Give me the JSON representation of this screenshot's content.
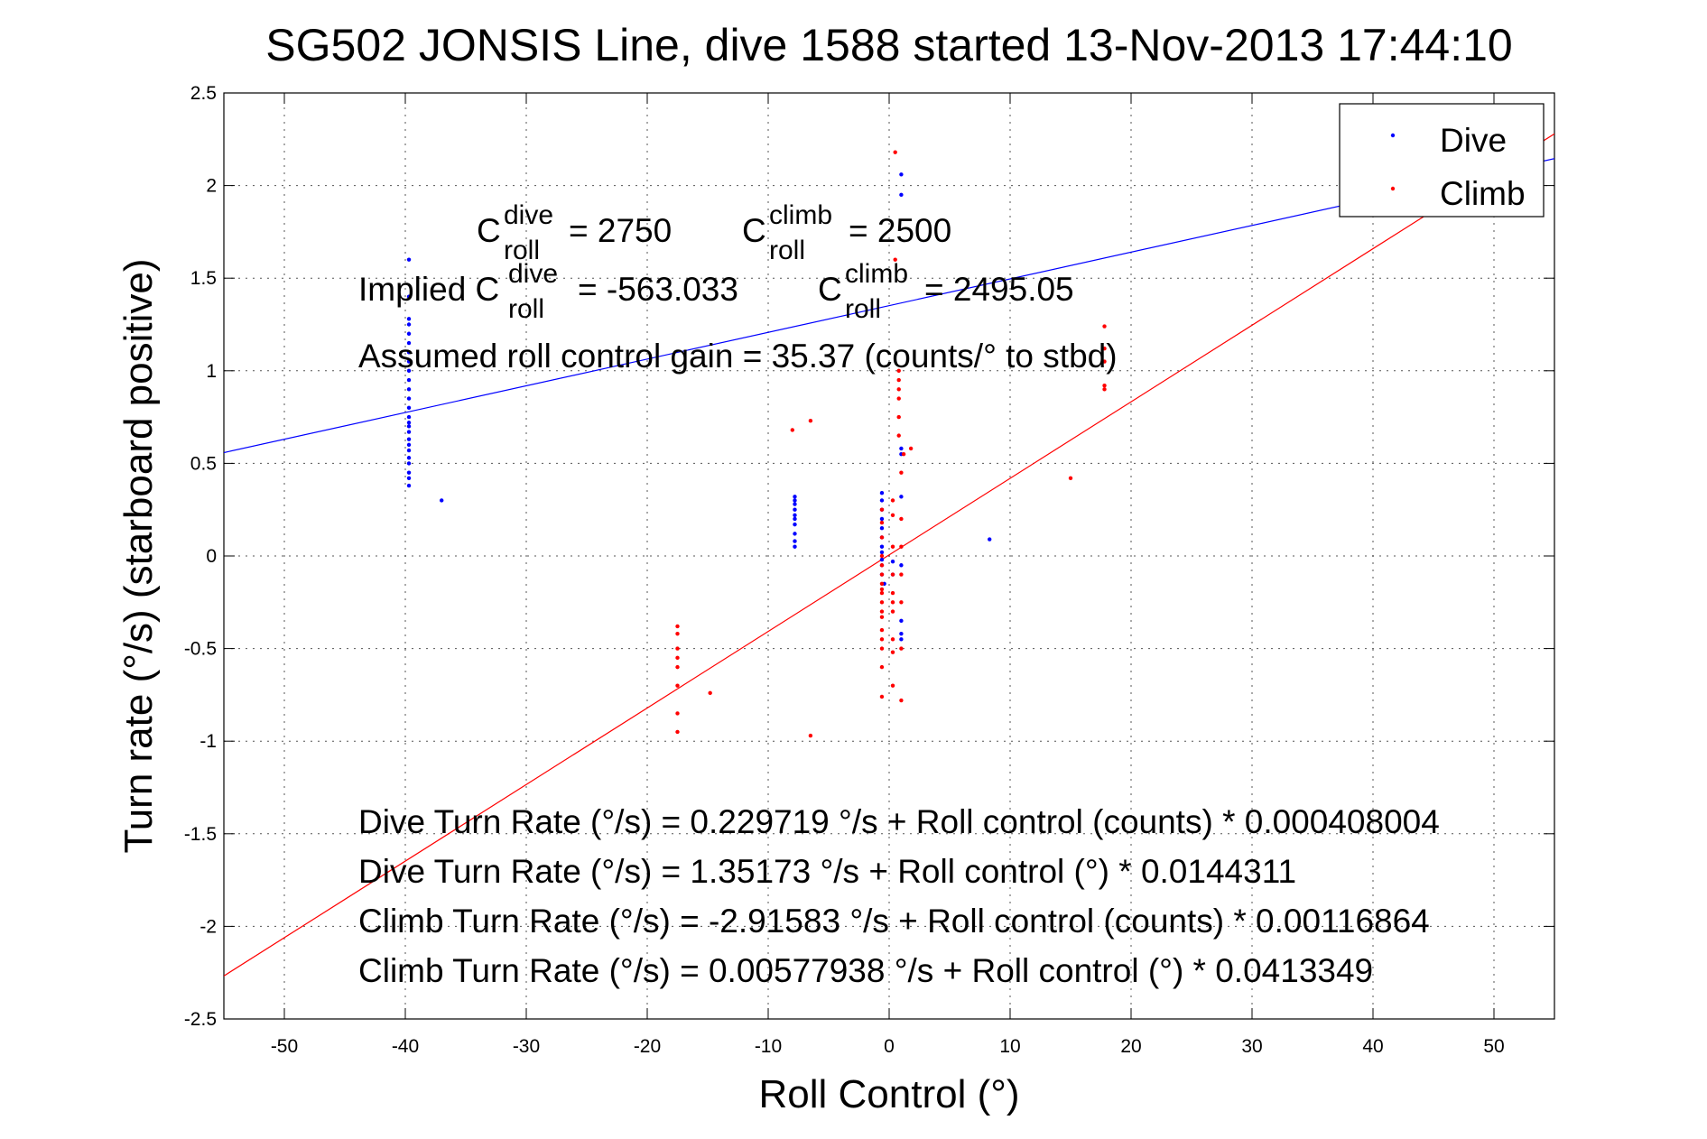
{
  "chart_data": {
    "type": "scatter",
    "title": "SG502 JONSIS Line, dive 1588 started 13-Nov-2013 17:44:10",
    "xlabel": "Roll Control (°)",
    "ylabel": "Turn rate (°/s) (starboard positive)",
    "xlim": [
      -55,
      55
    ],
    "ylim": [
      -2.5,
      2.5
    ],
    "x_ticks": [
      -50,
      -40,
      -30,
      -20,
      -10,
      0,
      10,
      20,
      30,
      40,
      50
    ],
    "x_tick_labels": [
      "-50",
      "-40",
      "-30",
      "-20",
      "-10",
      "0",
      "10",
      "20",
      "30",
      "40",
      "50"
    ],
    "y_ticks": [
      2.5,
      2,
      1.5,
      1,
      0.5,
      0,
      -0.5,
      -1,
      -1.5,
      -2,
      -2.5
    ],
    "y_tick_labels": [
      "2.5",
      "2",
      "1.5",
      "1",
      "0.5",
      "0",
      "-0.5",
      "-1",
      "-1.5",
      "-2",
      "-2.5"
    ],
    "grid": true,
    "legend": "top-right",
    "series": [
      {
        "name": "Dive",
        "color": "#0000ff",
        "fit": {
          "intercept": 1.35173,
          "slope": 0.0144311
        },
        "points": [
          [
            -39.7,
            1.6
          ],
          [
            -39.7,
            1.4
          ],
          [
            -39.7,
            1.28
          ],
          [
            -39.7,
            1.25
          ],
          [
            -39.7,
            1.2
          ],
          [
            -39.7,
            1.15
          ],
          [
            -39.7,
            1.1
          ],
          [
            -39.7,
            1.05
          ],
          [
            -39.7,
            1.0
          ],
          [
            -39.7,
            0.95
          ],
          [
            -39.7,
            0.9
          ],
          [
            -39.7,
            0.85
          ],
          [
            -39.7,
            0.8
          ],
          [
            -39.7,
            0.75
          ],
          [
            -39.7,
            0.72
          ],
          [
            -39.7,
            0.7
          ],
          [
            -39.7,
            0.67
          ],
          [
            -39.7,
            0.63
          ],
          [
            -39.7,
            0.6
          ],
          [
            -39.7,
            0.57
          ],
          [
            -39.7,
            0.53
          ],
          [
            -39.7,
            0.5
          ],
          [
            -39.7,
            0.45
          ],
          [
            -39.7,
            0.42
          ],
          [
            -39.7,
            0.38
          ],
          [
            -37,
            0.3
          ],
          [
            -7.8,
            0.32
          ],
          [
            -7.8,
            0.3
          ],
          [
            -7.8,
            0.28
          ],
          [
            -7.8,
            0.25
          ],
          [
            -7.8,
            0.22
          ],
          [
            -7.8,
            0.2
          ],
          [
            -7.8,
            0.17
          ],
          [
            -7.8,
            0.12
          ],
          [
            -7.8,
            0.08
          ],
          [
            -7.8,
            0.05
          ],
          [
            -0.6,
            0.34
          ],
          [
            -0.6,
            0.3
          ],
          [
            -0.6,
            0.25
          ],
          [
            -0.6,
            0.2
          ],
          [
            -0.6,
            0.15
          ],
          [
            -0.6,
            0.1
          ],
          [
            -0.6,
            0.05
          ],
          [
            -0.6,
            0.02
          ],
          [
            -0.6,
            -0.02
          ],
          [
            -0.6,
            -0.05
          ],
          [
            -0.6,
            -0.1
          ],
          [
            -0.4,
            -0.15
          ],
          [
            0.3,
            -0.03
          ],
          [
            0.3,
            -0.1
          ],
          [
            1.0,
            2.06
          ],
          [
            1.0,
            1.95
          ],
          [
            1.0,
            0.58
          ],
          [
            1.0,
            0.55
          ],
          [
            1.0,
            0.32
          ],
          [
            1.0,
            -0.05
          ],
          [
            1.0,
            -0.35
          ],
          [
            1.0,
            -0.42
          ],
          [
            1.0,
            -0.45
          ],
          [
            8.3,
            0.09
          ]
        ]
      },
      {
        "name": "Climb",
        "color": "#ff0000",
        "fit": {
          "intercept": 0.00577938,
          "slope": 0.0413349
        },
        "points": [
          [
            -17.5,
            -0.38
          ],
          [
            -17.5,
            -0.42
          ],
          [
            -17.5,
            -0.5
          ],
          [
            -17.5,
            -0.55
          ],
          [
            -17.5,
            -0.6
          ],
          [
            -17.5,
            -0.7
          ],
          [
            -17.5,
            -0.85
          ],
          [
            -17.5,
            -0.95
          ],
          [
            -14.8,
            -0.74
          ],
          [
            -8.0,
            0.68
          ],
          [
            -6.5,
            0.73
          ],
          [
            -6.5,
            -0.97
          ],
          [
            -0.6,
            0.25
          ],
          [
            -0.6,
            0.18
          ],
          [
            -0.6,
            0.1
          ],
          [
            -0.6,
            0.0
          ],
          [
            -0.6,
            -0.05
          ],
          [
            -0.6,
            -0.1
          ],
          [
            -0.6,
            -0.15
          ],
          [
            -0.6,
            -0.18
          ],
          [
            -0.6,
            -0.2
          ],
          [
            -0.6,
            -0.25
          ],
          [
            -0.6,
            -0.3
          ],
          [
            -0.6,
            -0.33
          ],
          [
            -0.6,
            -0.4
          ],
          [
            -0.6,
            -0.45
          ],
          [
            -0.6,
            -0.5
          ],
          [
            -0.6,
            -0.6
          ],
          [
            -0.6,
            -0.76
          ],
          [
            0.3,
            0.3
          ],
          [
            0.3,
            0.22
          ],
          [
            0.3,
            0.05
          ],
          [
            0.3,
            -0.1
          ],
          [
            0.3,
            -0.2
          ],
          [
            0.3,
            -0.25
          ],
          [
            0.3,
            -0.3
          ],
          [
            0.3,
            -0.45
          ],
          [
            0.3,
            -0.52
          ],
          [
            0.3,
            -0.7
          ],
          [
            0.5,
            2.18
          ],
          [
            0.5,
            1.6
          ],
          [
            0.8,
            1.0
          ],
          [
            0.8,
            0.95
          ],
          [
            0.8,
            0.9
          ],
          [
            0.8,
            0.85
          ],
          [
            0.8,
            0.75
          ],
          [
            0.8,
            0.65
          ],
          [
            1.0,
            0.45
          ],
          [
            1.0,
            0.2
          ],
          [
            1.0,
            0.05
          ],
          [
            1.0,
            -0.1
          ],
          [
            1.0,
            -0.25
          ],
          [
            1.0,
            -0.5
          ],
          [
            1.0,
            -0.78
          ],
          [
            1.2,
            0.55
          ],
          [
            1.8,
            0.58
          ],
          [
            15.0,
            0.42
          ],
          [
            17.8,
            1.24
          ],
          [
            17.8,
            1.12
          ],
          [
            17.8,
            1.05
          ],
          [
            17.8,
            0.92
          ],
          [
            17.8,
            0.9
          ]
        ]
      }
    ],
    "annotations": {
      "c_dive": {
        "main": "C",
        "sup": "dive",
        "sub": "roll",
        "value": "= 2750"
      },
      "c_climb": {
        "main": "C",
        "sup": "climb",
        "sub": "roll",
        "value": "= 2500"
      },
      "implied_dive": {
        "prefix": "Implied C",
        "sup": "dive",
        "sub": "roll",
        "value": "= -563.033"
      },
      "implied_climb": {
        "main": "C",
        "sup": "climb",
        "sub": "roll",
        "value": "= 2495.05"
      },
      "gain": "Assumed roll control gain = 35.37 (counts/° to stbd)",
      "fit_lines": [
        "Dive Turn Rate (°/s) = 0.229719 °/s + Roll control (counts) * 0.000408004",
        "Dive Turn Rate (°/s) = 1.35173 °/s + Roll control (°) * 0.0144311",
        "Climb Turn Rate (°/s) = -2.91583 °/s + Roll control (counts) * 0.00116864",
        "Climb Turn Rate (°/s) = 0.00577938 °/s + Roll control (°) * 0.0413349"
      ]
    }
  }
}
